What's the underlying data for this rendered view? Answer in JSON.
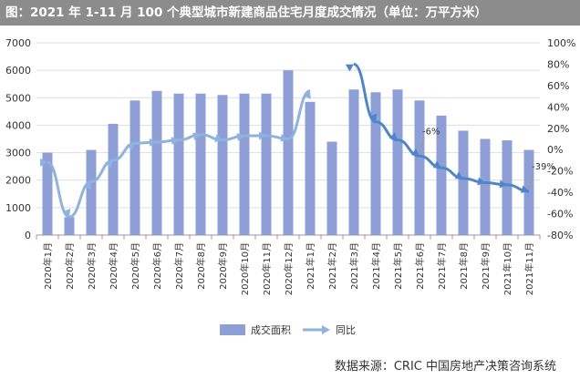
{
  "title": "图：2021 年 1-11 月 100 个典型城市新建商品住宅月度成交情况（单位：万平方米）",
  "source": "数据来源：CRIC 中国房地产决策咨询系统",
  "colors": {
    "bar": "#8e9fd6",
    "line": "#4f86c9",
    "line_light": "#8fb3de",
    "title_bg": "#8c8c8c",
    "grid": "#dddddd"
  },
  "chart_data": {
    "type": "bar",
    "categories": [
      "2020年1月",
      "2020年2月",
      "2020年3月",
      "2020年4月",
      "2020年5月",
      "2020年6月",
      "2020年7月",
      "2020年8月",
      "2020年9月",
      "2020年10月",
      "2020年11月",
      "2020年12月",
      "2021年1月",
      "2021年2月",
      "2021年3月",
      "2021年4月",
      "2021年5月",
      "2021年6月",
      "2021年7月",
      "2021年8月",
      "2021年9月",
      "2021年10月",
      "2021年11月"
    ],
    "series": [
      {
        "name": "成交面积",
        "type": "bar",
        "axis": "left",
        "values": [
          3000,
          650,
          3100,
          4050,
          4900,
          5250,
          5150,
          5150,
          5100,
          5150,
          5150,
          6000,
          4850,
          3400,
          5300,
          5200,
          5300,
          4900,
          4350,
          3800,
          3500,
          3450,
          3100
        ]
      },
      {
        "name": "同比",
        "type": "line",
        "axis": "right",
        "values": [
          -12,
          -63,
          -30,
          -10,
          6,
          7,
          9,
          14,
          9,
          13,
          13,
          10,
          55,
          null,
          80,
          26,
          9,
          -6,
          -17,
          -27,
          -31,
          -33,
          -39
        ]
      }
    ],
    "y_left": {
      "min": 0,
      "max": 7000,
      "step": 1000,
      "ticks": [
        "0",
        "1000",
        "2000",
        "3000",
        "4000",
        "5000",
        "6000",
        "7000"
      ]
    },
    "y_right": {
      "min": -80,
      "max": 100,
      "step": 20,
      "ticks": [
        "-80%",
        "-60%",
        "-40%",
        "-20%",
        "0%",
        "20%",
        "40%",
        "60%",
        "80%",
        "100%"
      ]
    },
    "annotations": [
      {
        "label": "-6%",
        "index": 17,
        "value": -6
      },
      {
        "label": "-39%",
        "index": 22,
        "value": -39
      }
    ],
    "legend": {
      "position": "bottom",
      "items": [
        "成交面积",
        "同比"
      ]
    },
    "grid": true
  }
}
